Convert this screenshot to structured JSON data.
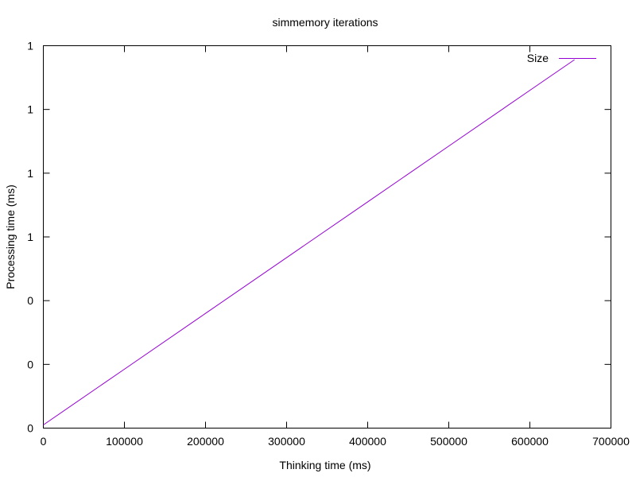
{
  "chart_data": {
    "type": "line",
    "title": "simmemory iterations",
    "xlabel": "Thinking time (ms)",
    "ylabel": "Processing time (ms)",
    "x_ticks": [
      "0",
      "100000",
      "200000",
      "300000",
      "400000",
      "500000",
      "600000",
      "700000"
    ],
    "y_ticks": [
      "0",
      "0",
      "0",
      "1",
      "1",
      "1",
      "1"
    ],
    "xlim": [
      0,
      700000
    ],
    "ylim": [
      0,
      1.2
    ],
    "grid": false,
    "legend_position": "top-right",
    "series": [
      {
        "name": "Size",
        "color": "#9400d3",
        "x": [
          0,
          100000,
          200000,
          300000,
          400000,
          500000,
          600000,
          655000
        ],
        "y": [
          0.01,
          0.185,
          0.36,
          0.535,
          0.71,
          0.885,
          1.06,
          1.156
        ]
      }
    ]
  }
}
